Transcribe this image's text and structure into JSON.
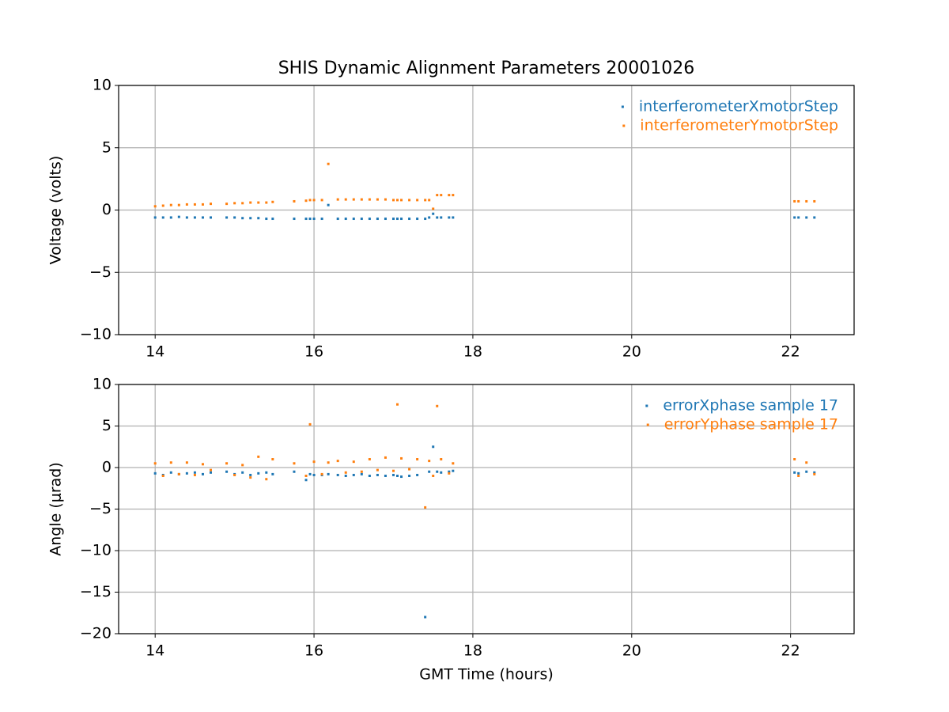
{
  "chart_data": [
    {
      "type": "scatter",
      "title": "SHIS Dynamic Alignment Parameters 20001026",
      "ylabel": "Voltage (volts)",
      "xlim": [
        13.54,
        22.8
      ],
      "ylim": [
        -10,
        10
      ],
      "xticks": [
        14,
        16,
        18,
        20,
        22
      ],
      "yticks": [
        {
          "value": -10,
          "label": "−10"
        },
        {
          "value": -5,
          "label": "−5"
        },
        0,
        5,
        10
      ],
      "grid": true,
      "legend": "upper right",
      "x": [
        14.0,
        14.1,
        14.2,
        14.3,
        14.4,
        14.5,
        14.6,
        14.7,
        14.9,
        15.0,
        15.1,
        15.2,
        15.3,
        15.4,
        15.48,
        15.75,
        15.9,
        15.95,
        16.0,
        16.1,
        16.18,
        16.3,
        16.4,
        16.5,
        16.6,
        16.7,
        16.8,
        16.9,
        17.0,
        17.05,
        17.1,
        17.2,
        17.3,
        17.4,
        17.45,
        17.5,
        17.55,
        17.6,
        17.7,
        17.75,
        22.05,
        22.1,
        22.2,
        22.3
      ],
      "series": [
        {
          "name": "interferometerXmotorStep",
          "color": "#1f77b4",
          "values": [
            -0.6,
            -0.6,
            -0.6,
            -0.55,
            -0.6,
            -0.6,
            -0.6,
            -0.6,
            -0.6,
            -0.6,
            -0.65,
            -0.65,
            -0.65,
            -0.7,
            -0.7,
            -0.7,
            -0.7,
            -0.7,
            -0.7,
            -0.7,
            0.4,
            -0.7,
            -0.7,
            -0.7,
            -0.7,
            -0.7,
            -0.7,
            -0.7,
            -0.7,
            -0.7,
            -0.7,
            -0.7,
            -0.7,
            -0.7,
            -0.6,
            -0.3,
            -0.6,
            -0.6,
            -0.6,
            -0.6,
            -0.6,
            -0.6,
            -0.6,
            -0.6
          ]
        },
        {
          "name": "interferometerYmotorStep",
          "color": "#ff7f0e",
          "values": [
            0.3,
            0.35,
            0.4,
            0.4,
            0.45,
            0.45,
            0.45,
            0.5,
            0.5,
            0.55,
            0.55,
            0.6,
            0.6,
            0.6,
            0.65,
            0.7,
            0.75,
            0.8,
            0.8,
            0.8,
            3.7,
            0.85,
            0.85,
            0.85,
            0.85,
            0.85,
            0.85,
            0.85,
            0.8,
            0.8,
            0.8,
            0.8,
            0.8,
            0.8,
            0.8,
            0.1,
            1.2,
            1.2,
            1.2,
            1.2,
            0.7,
            0.7,
            0.7,
            0.7
          ]
        }
      ]
    },
    {
      "type": "scatter",
      "ylabel": "Angle (μrad)",
      "xlabel": "GMT Time (hours)",
      "xlim": [
        13.54,
        22.8
      ],
      "ylim": [
        -20,
        10
      ],
      "xticks": [
        14,
        16,
        18,
        20,
        22
      ],
      "yticks": [
        {
          "value": -20,
          "label": "−20"
        },
        {
          "value": -15,
          "label": "−15"
        },
        {
          "value": -10,
          "label": "−10"
        },
        {
          "value": -5,
          "label": "−5"
        },
        0,
        5,
        10
      ],
      "grid": true,
      "legend": "upper right",
      "x": [
        14.0,
        14.1,
        14.2,
        14.3,
        14.4,
        14.5,
        14.6,
        14.7,
        14.9,
        15.0,
        15.1,
        15.2,
        15.3,
        15.4,
        15.48,
        15.75,
        15.9,
        15.95,
        16.0,
        16.1,
        16.18,
        16.3,
        16.4,
        16.5,
        16.6,
        16.7,
        16.8,
        16.9,
        17.0,
        17.05,
        17.1,
        17.2,
        17.3,
        17.4,
        17.45,
        17.5,
        17.55,
        17.6,
        17.7,
        17.75,
        22.05,
        22.1,
        22.2,
        22.3
      ],
      "series": [
        {
          "name": "errorXphase sample 17",
          "color": "#1f77b4",
          "values": [
            -0.7,
            -0.9,
            -0.6,
            -0.8,
            -0.7,
            -0.6,
            -0.8,
            -0.6,
            -0.5,
            -0.8,
            -0.6,
            -0.9,
            -0.7,
            -0.6,
            -0.8,
            -0.5,
            -1.5,
            -0.8,
            -0.9,
            -0.9,
            -0.8,
            -0.9,
            -1.0,
            -0.9,
            -0.8,
            -1.0,
            -0.9,
            -1.0,
            -0.9,
            -1.0,
            -1.1,
            -1.0,
            -0.9,
            -18,
            -0.5,
            2.5,
            -0.5,
            -0.6,
            -0.5,
            -0.4,
            -0.6,
            -0.7,
            -0.5,
            -0.6
          ]
        },
        {
          "name": "errorYphase sample 17",
          "color": "#ff7f0e",
          "values": [
            0.5,
            -1.0,
            0.6,
            -0.8,
            0.6,
            -0.9,
            0.4,
            -0.3,
            0.5,
            -0.9,
            0.3,
            -1.2,
            1.3,
            -1.4,
            1.0,
            0.5,
            -1.0,
            5.2,
            0.7,
            -0.8,
            0.6,
            0.8,
            -0.6,
            0.7,
            -0.5,
            1.0,
            -0.3,
            1.2,
            -0.4,
            7.6,
            1.1,
            -0.2,
            1.0,
            -4.8,
            0.8,
            -1.0,
            7.4,
            1.0,
            -0.7,
            0.5,
            1.0,
            -1.0,
            0.6,
            -0.8
          ]
        }
      ]
    }
  ]
}
